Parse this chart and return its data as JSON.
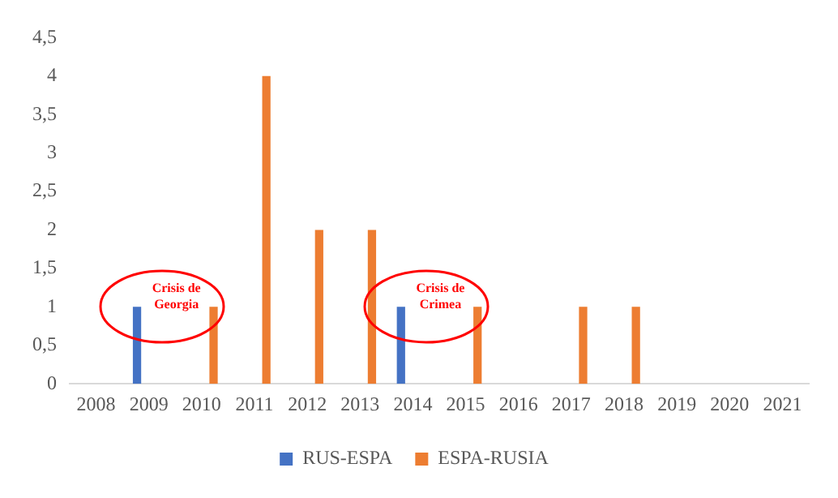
{
  "chart_data": {
    "type": "bar",
    "categories": [
      "2008",
      "2009",
      "2010",
      "2011",
      "2012",
      "2013",
      "2014",
      "2015",
      "2016",
      "2017",
      "2018",
      "2019",
      "2020",
      "2021"
    ],
    "series": [
      {
        "name": "RUS-ESPA",
        "color": "#4472c4",
        "values": [
          0,
          1,
          0,
          0,
          0,
          0,
          1,
          0,
          0,
          0,
          0,
          0,
          0,
          0
        ]
      },
      {
        "name": "ESPA-RUSIA",
        "color": "#ed7d31",
        "values": [
          0,
          0,
          1,
          4,
          2,
          2,
          0,
          1,
          0,
          1,
          1,
          0,
          0,
          0
        ]
      }
    ],
    "ylim": [
      0,
      4.5
    ],
    "yticks": [
      0,
      {
        "value": 0.5,
        "label": "0,5"
      },
      1,
      {
        "value": 1.5,
        "label": "1,5"
      },
      2,
      {
        "value": 2.5,
        "label": "2,5"
      },
      3,
      {
        "value": 3.5,
        "label": "3,5"
      },
      4,
      {
        "value": 4.5,
        "label": "4,5"
      }
    ],
    "legend": "bottom",
    "annotations": [
      {
        "text": "Crisis de Georgia",
        "x": "2009",
        "y": 1
      },
      {
        "text": "Crisis de Crimea",
        "x": "2014",
        "y": 1
      }
    ]
  }
}
